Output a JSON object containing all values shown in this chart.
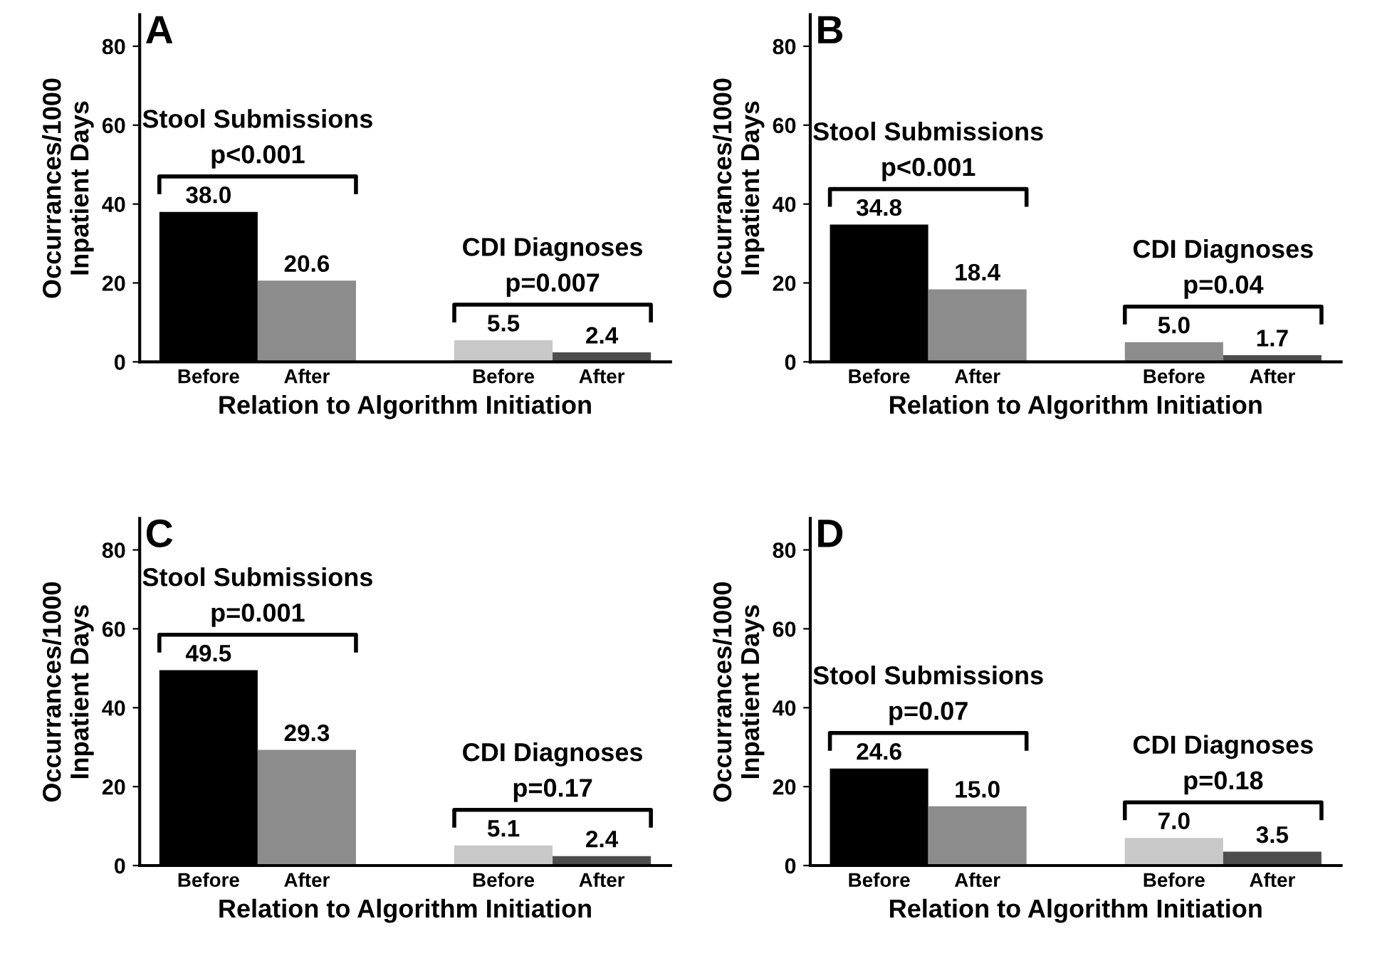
{
  "chart_data": [
    {
      "type": "bar",
      "title": "A",
      "xlabel": "Relation to Algorithm Initiation",
      "ylabel": "Occurrances/1000\nInpatient Days",
      "categories": [
        "Before",
        "After",
        null,
        "Before",
        "After"
      ],
      "values": [
        38.0,
        20.6,
        null,
        5.5,
        2.4
      ],
      "value_labels": [
        "38.0",
        "20.6",
        null,
        "5.5",
        "2.4"
      ],
      "colors": [
        "#000000",
        "#8c8c8c",
        null,
        "#c8c8c8",
        "#4d4d4d"
      ],
      "ylim": [
        0,
        88
      ],
      "yticks": [
        0,
        20,
        40,
        60,
        80
      ],
      "grid": false,
      "legend": false,
      "annotations": [
        "Stool Submissions",
        "p<0.001",
        "CDI Diagnoses",
        "p=0.007"
      ]
    },
    {
      "type": "bar",
      "title": "B",
      "xlabel": "Relation to Algorithm Initiation",
      "ylabel": "Occurrances/1000\nInpatient Days",
      "categories": [
        "Before",
        "After",
        null,
        "Before",
        "After"
      ],
      "values": [
        34.8,
        18.4,
        null,
        5.0,
        1.7
      ],
      "value_labels": [
        "34.8",
        "18.4",
        null,
        "5.0",
        "1.7"
      ],
      "colors": [
        "#000000",
        "#8c8c8c",
        null,
        "#8c8c8c",
        "#4d4d4d"
      ],
      "ylim": [
        0,
        88
      ],
      "yticks": [
        0,
        20,
        40,
        60,
        80
      ],
      "grid": false,
      "legend": false,
      "annotations": [
        "Stool Submissions",
        "p<0.001",
        "CDI Diagnoses",
        "p=0.04"
      ]
    },
    {
      "type": "bar",
      "title": "C",
      "xlabel": "Relation to Algorithm Initiation",
      "ylabel": "Occurrances/1000\nInpatient Days",
      "categories": [
        "Before",
        "After",
        null,
        "Before",
        "After"
      ],
      "values": [
        49.5,
        29.3,
        null,
        5.1,
        2.4
      ],
      "value_labels": [
        "49.5",
        "29.3",
        null,
        "5.1",
        "2.4"
      ],
      "colors": [
        "#000000",
        "#8c8c8c",
        null,
        "#c8c8c8",
        "#4d4d4d"
      ],
      "ylim": [
        0,
        88
      ],
      "yticks": [
        0,
        20,
        40,
        60,
        80
      ],
      "grid": false,
      "legend": false,
      "annotations": [
        "Stool Submissions",
        "p=0.001",
        "CDI Diagnoses",
        "p=0.17"
      ]
    },
    {
      "type": "bar",
      "title": "D",
      "xlabel": "Relation to Algorithm Initiation",
      "ylabel": "Occurrances/1000\nInpatient Days",
      "categories": [
        "Before",
        "After",
        null,
        "Before",
        "After"
      ],
      "values": [
        24.6,
        15.0,
        null,
        7.0,
        3.5
      ],
      "value_labels": [
        "24.6",
        "15.0",
        null,
        "7.0",
        "3.5"
      ],
      "colors": [
        "#000000",
        "#8c8c8c",
        null,
        "#c8c8c8",
        "#4d4d4d"
      ],
      "ylim": [
        0,
        88
      ],
      "yticks": [
        0,
        20,
        40,
        60,
        80
      ],
      "grid": false,
      "legend": false,
      "annotations": [
        "Stool Submissions",
        "p=0.07",
        "CDI Diagnoses",
        "p=0.18"
      ]
    }
  ]
}
